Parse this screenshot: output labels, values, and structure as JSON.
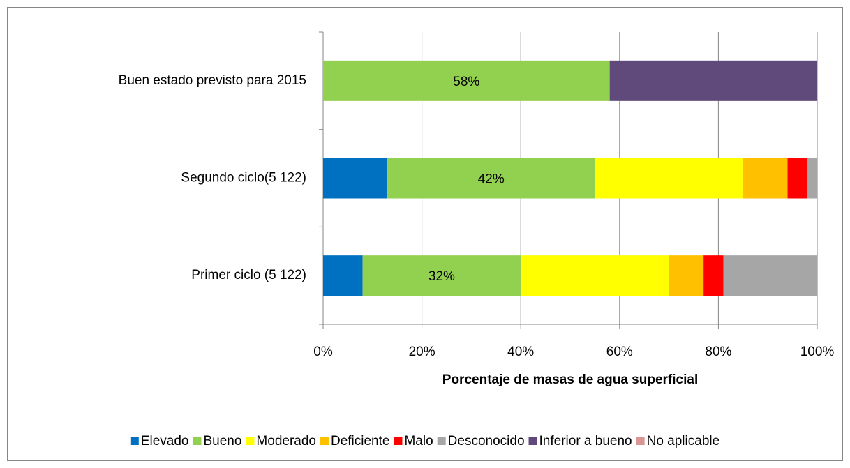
{
  "chart_data": {
    "type": "stacked_barh",
    "xlabel": "Porcentaje de masas de agua superficial",
    "categories": [
      "Buen estado previsto para 2015",
      "Segundo ciclo(5 122)",
      "Primer ciclo (5 122)"
    ],
    "series": [
      {
        "name": "Elevado",
        "color": "#0070c0",
        "values": [
          0,
          13,
          8
        ]
      },
      {
        "name": "Bueno",
        "color": "#92d050",
        "values": [
          58,
          42,
          32
        ],
        "value_labels": [
          "58%",
          "42%",
          "32%"
        ]
      },
      {
        "name": "Moderado",
        "color": "#ffff00",
        "values": [
          0,
          30,
          30
        ]
      },
      {
        "name": "Deficiente",
        "color": "#ffc000",
        "values": [
          0,
          9,
          7
        ]
      },
      {
        "name": "Malo",
        "color": "#ff0000",
        "values": [
          0,
          4,
          4
        ]
      },
      {
        "name": "Desconocido",
        "color": "#a6a6a6",
        "values": [
          0,
          2,
          19
        ]
      },
      {
        "name": "Inferior a bueno",
        "color": "#604a7b",
        "values": [
          42,
          0,
          0
        ]
      },
      {
        "name": "No aplicable",
        "color": "#d99694",
        "values": [
          0,
          0,
          0
        ]
      }
    ],
    "xlim": [
      0,
      100
    ],
    "xticks": [
      {
        "value": 0,
        "label": "0%"
      },
      {
        "value": 20,
        "label": "20%"
      },
      {
        "value": 40,
        "label": "40%"
      },
      {
        "value": 60,
        "label": "60%"
      },
      {
        "value": 80,
        "label": "80%"
      },
      {
        "value": 100,
        "label": "100%"
      }
    ],
    "grid": true,
    "legend": "bottom"
  }
}
